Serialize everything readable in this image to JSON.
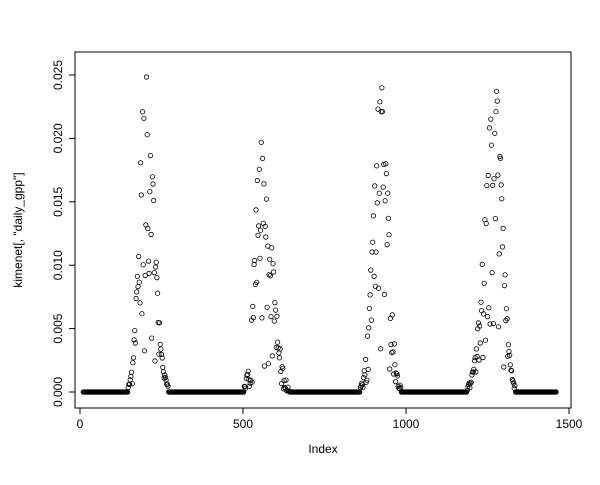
{
  "figure": {
    "background": "#ffffff",
    "point_color": "#000000",
    "marker_shape": "open-circle"
  },
  "chart_data": {
    "type": "scatter",
    "title": "",
    "xlabel": "Index",
    "ylabel": "kimenet[, \"daily_gpp\"]",
    "xlim": [
      0,
      1500
    ],
    "ylim": [
      0.0,
      0.025
    ],
    "grid": false,
    "legend": null,
    "xticks": [
      {
        "v": 0,
        "label": "0"
      },
      {
        "v": 500,
        "label": "500"
      },
      {
        "v": 1000,
        "label": "1000"
      },
      {
        "v": 1500,
        "label": "1500"
      }
    ],
    "yticks": [
      {
        "v": 0.0,
        "label": "0.000"
      },
      {
        "v": 0.005,
        "label": "0.005"
      },
      {
        "v": 0.01,
        "label": "0.010"
      },
      {
        "v": 0.015,
        "label": "0.015"
      },
      {
        "v": 0.02,
        "label": "0.020"
      },
      {
        "v": 0.025,
        "label": "0.025"
      }
    ],
    "series": [
      {
        "name": "daily_gpp",
        "summary": "Daily GPP index series: four seasonal bell-shaped peaks (approx. at index 202, 555, 923, 1273 with maxima approx. 0.0255, 0.0205, 0.0255, 0.0245) separated by long runs of exact zeros along the baseline; points scatter downward from the seasonal envelope.",
        "n_points_rendered": 726,
        "generator": {
          "x_start": 10,
          "x_end": 1460,
          "x_step": 2,
          "seed": 42,
          "baseline": 0.0,
          "visibility_threshold": 0.0004,
          "noise": {
            "a": 0.9,
            "p": 2.2,
            "jitter": 0.06,
            "y_clamp": 0.0258
          },
          "seasons": [
            {
              "peak_x": 202,
              "max_y": 0.0255,
              "sigma_left": 27,
              "sigma_right": 34
            },
            {
              "peak_x": 555,
              "max_y": 0.0205,
              "sigma_left": 26,
              "sigma_right": 44
            },
            {
              "peak_x": 923,
              "max_y": 0.0255,
              "sigma_left": 31,
              "sigma_right": 30
            },
            {
              "peak_x": 1273,
              "max_y": 0.0245,
              "sigma_left": 42,
              "sigma_right": 31
            }
          ]
        }
      }
    ]
  }
}
